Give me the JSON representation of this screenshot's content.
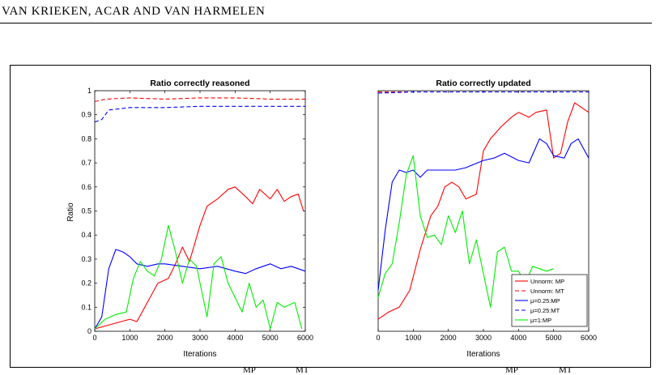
{
  "header": {
    "running_head_html": "VAN K<span class=\"sc\">RIEKEN</span>, A<span class=\"sc\">CAR AND VAN</span> H<span class=\"sc\">ARMELEN</span>",
    "running_head": "VAN KRIEKEN, ACAR AND VAN HARMELEN"
  },
  "caption_fragments": [
    "MP",
    "MT",
    "MP",
    "MT"
  ],
  "chart_data": [
    {
      "type": "line",
      "title": "Ratio correctly reasoned",
      "xlabel": "Iterations",
      "ylabel": "Ratio",
      "xlim": [
        0,
        6000
      ],
      "ylim": [
        0,
        1
      ],
      "xticks": [
        0,
        1000,
        2000,
        3000,
        4000,
        5000,
        6000
      ],
      "yticks": [
        0,
        0.1,
        0.2,
        0.3,
        0.4,
        0.5,
        0.6,
        0.7,
        0.8,
        0.9,
        1
      ],
      "series": [
        {
          "name": "Unnorm: MP",
          "color": "#ff0000",
          "dash": false,
          "points": [
            [
              0,
              0.01
            ],
            [
              500,
              0.03
            ],
            [
              1000,
              0.05
            ],
            [
              1200,
              0.04
            ],
            [
              1500,
              0.12
            ],
            [
              1800,
              0.2
            ],
            [
              2100,
              0.22
            ],
            [
              2300,
              0.28
            ],
            [
              2500,
              0.35
            ],
            [
              2700,
              0.29
            ],
            [
              3000,
              0.44
            ],
            [
              3200,
              0.52
            ],
            [
              3500,
              0.55
            ],
            [
              3800,
              0.59
            ],
            [
              4000,
              0.6
            ],
            [
              4300,
              0.56
            ],
            [
              4500,
              0.53
            ],
            [
              4700,
              0.59
            ],
            [
              5000,
              0.55
            ],
            [
              5200,
              0.59
            ],
            [
              5400,
              0.54
            ],
            [
              5600,
              0.56
            ],
            [
              5800,
              0.57
            ],
            [
              5950,
              0.5
            ]
          ]
        },
        {
          "name": "Unnorm: MT",
          "color": "#ff0000",
          "dash": true,
          "points": [
            [
              0,
              0.955
            ],
            [
              300,
              0.965
            ],
            [
              1000,
              0.97
            ],
            [
              2000,
              0.965
            ],
            [
              3000,
              0.97
            ],
            [
              4000,
              0.97
            ],
            [
              5000,
              0.965
            ],
            [
              6000,
              0.965
            ]
          ]
        },
        {
          "name": "μ=0.25:MP",
          "color": "#0000ff",
          "dash": false,
          "points": [
            [
              0,
              0.01
            ],
            [
              200,
              0.06
            ],
            [
              400,
              0.26
            ],
            [
              600,
              0.34
            ],
            [
              800,
              0.33
            ],
            [
              1000,
              0.31
            ],
            [
              1200,
              0.28
            ],
            [
              1500,
              0.27
            ],
            [
              1800,
              0.28
            ],
            [
              2000,
              0.28
            ],
            [
              2500,
              0.27
            ],
            [
              3000,
              0.26
            ],
            [
              3500,
              0.27
            ],
            [
              4000,
              0.25
            ],
            [
              4300,
              0.24
            ],
            [
              4600,
              0.26
            ],
            [
              5000,
              0.28
            ],
            [
              5300,
              0.26
            ],
            [
              5600,
              0.27
            ],
            [
              6000,
              0.25
            ]
          ]
        },
        {
          "name": "μ=0.25:MT",
          "color": "#0000ff",
          "dash": true,
          "points": [
            [
              0,
              0.87
            ],
            [
              200,
              0.88
            ],
            [
              400,
              0.92
            ],
            [
              700,
              0.925
            ],
            [
              1000,
              0.93
            ],
            [
              2000,
              0.93
            ],
            [
              3000,
              0.935
            ],
            [
              4000,
              0.935
            ],
            [
              5000,
              0.935
            ],
            [
              6000,
              0.935
            ]
          ]
        },
        {
          "name": "μ=1:MP",
          "color": "#00ee00",
          "dash": false,
          "points": [
            [
              0,
              0.01
            ],
            [
              300,
              0.05
            ],
            [
              600,
              0.07
            ],
            [
              900,
              0.08
            ],
            [
              1100,
              0.22
            ],
            [
              1300,
              0.29
            ],
            [
              1500,
              0.25
            ],
            [
              1700,
              0.23
            ],
            [
              1900,
              0.3
            ],
            [
              2100,
              0.44
            ],
            [
              2300,
              0.33
            ],
            [
              2500,
              0.2
            ],
            [
              2700,
              0.3
            ],
            [
              2900,
              0.27
            ],
            [
              3200,
              0.06
            ],
            [
              3400,
              0.28
            ],
            [
              3600,
              0.31
            ],
            [
              3800,
              0.2
            ],
            [
              4000,
              0.14
            ],
            [
              4200,
              0.08
            ],
            [
              4400,
              0.2
            ],
            [
              4600,
              0.1
            ],
            [
              4800,
              0.13
            ],
            [
              5000,
              0.01
            ],
            [
              5200,
              0.12
            ],
            [
              5400,
              0.1
            ],
            [
              5700,
              0.12
            ],
            [
              5900,
              0.01
            ]
          ]
        }
      ]
    },
    {
      "type": "line",
      "title": "Ratio correctly updated",
      "xlabel": "Iterations",
      "ylabel": "",
      "xlim": [
        0,
        6000
      ],
      "ylim": [
        0,
        1
      ],
      "xticks": [
        0,
        1000,
        2000,
        3000,
        4000,
        5000,
        6000
      ],
      "yticks": [],
      "series": [
        {
          "name": "Unnorm: MP",
          "color": "#ff0000",
          "dash": false,
          "points": [
            [
              0,
              0.05
            ],
            [
              300,
              0.08
            ],
            [
              600,
              0.1
            ],
            [
              900,
              0.17
            ],
            [
              1200,
              0.34
            ],
            [
              1500,
              0.48
            ],
            [
              1700,
              0.52
            ],
            [
              1900,
              0.6
            ],
            [
              2100,
              0.62
            ],
            [
              2300,
              0.6
            ],
            [
              2500,
              0.55
            ],
            [
              2800,
              0.57
            ],
            [
              3000,
              0.75
            ],
            [
              3200,
              0.8
            ],
            [
              3500,
              0.85
            ],
            [
              3800,
              0.89
            ],
            [
              4000,
              0.91
            ],
            [
              4300,
              0.89
            ],
            [
              4500,
              0.91
            ],
            [
              4800,
              0.92
            ],
            [
              5000,
              0.72
            ],
            [
              5200,
              0.74
            ],
            [
              5400,
              0.87
            ],
            [
              5600,
              0.95
            ],
            [
              5800,
              0.93
            ],
            [
              6000,
              0.91
            ]
          ]
        },
        {
          "name": "Unnorm: MT",
          "color": "#ff0000",
          "dash": true,
          "points": [
            [
              0,
              0.995
            ],
            [
              1000,
              0.995
            ],
            [
              2000,
              0.995
            ],
            [
              3000,
              0.995
            ],
            [
              4000,
              0.995
            ],
            [
              5000,
              0.995
            ],
            [
              6000,
              0.995
            ]
          ]
        },
        {
          "name": "μ=0.25:MP",
          "color": "#0000ff",
          "dash": false,
          "points": [
            [
              0,
              0.17
            ],
            [
              200,
              0.42
            ],
            [
              400,
              0.62
            ],
            [
              600,
              0.67
            ],
            [
              800,
              0.66
            ],
            [
              1000,
              0.67
            ],
            [
              1200,
              0.64
            ],
            [
              1400,
              0.67
            ],
            [
              1800,
              0.67
            ],
            [
              2200,
              0.67
            ],
            [
              2500,
              0.68
            ],
            [
              3000,
              0.71
            ],
            [
              3300,
              0.72
            ],
            [
              3600,
              0.74
            ],
            [
              4000,
              0.71
            ],
            [
              4300,
              0.7
            ],
            [
              4600,
              0.8
            ],
            [
              4800,
              0.78
            ],
            [
              5000,
              0.73
            ],
            [
              5300,
              0.72
            ],
            [
              5500,
              0.78
            ],
            [
              5700,
              0.8
            ],
            [
              6000,
              0.72
            ]
          ]
        },
        {
          "name": "μ=0.25:MT",
          "color": "#0000ff",
          "dash": true,
          "points": [
            [
              0,
              0.99
            ],
            [
              1000,
              0.995
            ],
            [
              2000,
              0.995
            ],
            [
              3000,
              0.995
            ],
            [
              4000,
              0.995
            ],
            [
              5000,
              0.995
            ],
            [
              6000,
              0.995
            ]
          ]
        },
        {
          "name": "μ=1:MP",
          "color": "#00ee00",
          "dash": false,
          "points": [
            [
              0,
              0.14
            ],
            [
              200,
              0.24
            ],
            [
              400,
              0.28
            ],
            [
              600,
              0.45
            ],
            [
              800,
              0.65
            ],
            [
              1000,
              0.73
            ],
            [
              1200,
              0.48
            ],
            [
              1400,
              0.39
            ],
            [
              1600,
              0.4
            ],
            [
              1800,
              0.36
            ],
            [
              2000,
              0.48
            ],
            [
              2200,
              0.41
            ],
            [
              2400,
              0.5
            ],
            [
              2600,
              0.28
            ],
            [
              2800,
              0.38
            ],
            [
              3000,
              0.24
            ],
            [
              3200,
              0.1
            ],
            [
              3400,
              0.33
            ],
            [
              3600,
              0.35
            ],
            [
              3800,
              0.25
            ],
            [
              4000,
              0.25
            ],
            [
              4200,
              0.2
            ],
            [
              4400,
              0.27
            ],
            [
              4600,
              0.26
            ],
            [
              4800,
              0.25
            ],
            [
              5000,
              0.26
            ]
          ]
        }
      ],
      "legend": {
        "position": "bottom-right",
        "entries": [
          "Unnorm: MP",
          "Unnorm: MT",
          "μ=0.25:MP",
          "μ=0.25:MT",
          "μ=1:MP"
        ]
      }
    }
  ]
}
